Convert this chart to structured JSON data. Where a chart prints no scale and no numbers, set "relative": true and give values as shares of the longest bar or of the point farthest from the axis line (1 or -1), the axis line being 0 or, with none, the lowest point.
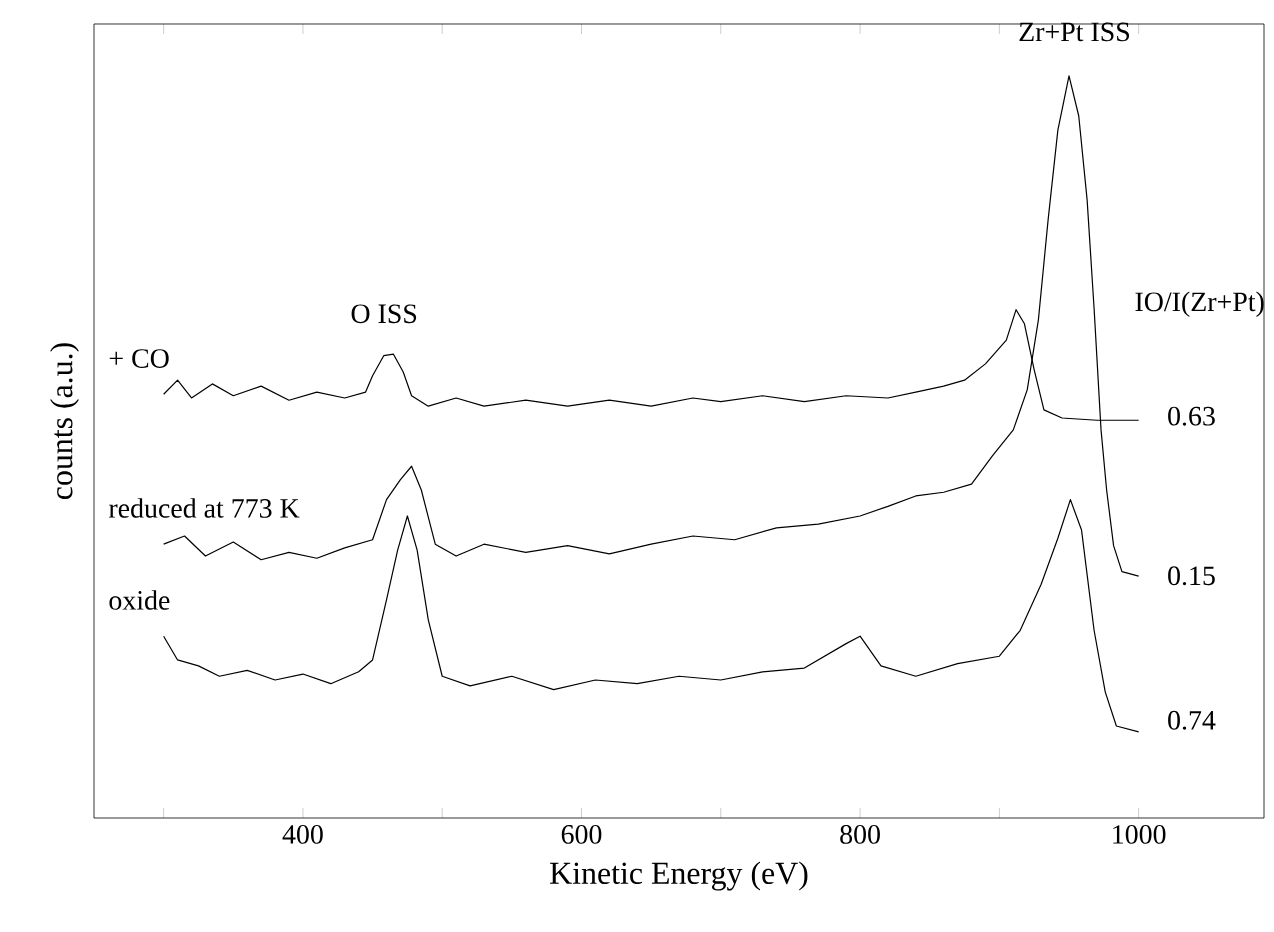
{
  "chart_data": {
    "type": "line",
    "relative": true,
    "xlabel": "Kinetic Energy (eV)",
    "ylabel": "counts (a.u.)",
    "xlim": [
      250,
      1090
    ],
    "xticks": [
      {
        "value": 300,
        "label": null
      },
      400,
      {
        "value": 500,
        "label": null
      },
      600,
      {
        "value": 700,
        "label": null
      },
      800,
      {
        "value": 900,
        "label": null
      },
      1000
    ],
    "series": [
      {
        "name": "+ CO",
        "color": "#000000",
        "x": [
          300,
          310,
          320,
          335,
          350,
          370,
          390,
          410,
          430,
          445,
          450,
          458,
          465,
          472,
          478,
          490,
          510,
          530,
          560,
          590,
          620,
          650,
          680,
          700,
          730,
          760,
          790,
          820,
          840,
          860,
          875,
          890,
          905,
          912,
          918,
          925,
          932,
          945,
          970,
          1000
        ],
        "values": [
          0.571,
          0.59,
          0.566,
          0.585,
          0.569,
          0.582,
          0.563,
          0.574,
          0.566,
          0.574,
          0.596,
          0.623,
          0.625,
          0.601,
          0.569,
          0.555,
          0.566,
          0.555,
          0.563,
          0.555,
          0.563,
          0.555,
          0.566,
          0.561,
          0.569,
          0.561,
          0.569,
          0.566,
          0.574,
          0.582,
          0.59,
          0.612,
          0.644,
          0.685,
          0.666,
          0.604,
          0.55,
          0.539,
          0.536,
          0.536
        ]
      },
      {
        "name": "reduced at 773 K",
        "color": "#000000",
        "x": [
          300,
          315,
          330,
          350,
          370,
          390,
          410,
          430,
          450,
          460,
          470,
          478,
          485,
          495,
          510,
          530,
          560,
          590,
          620,
          650,
          680,
          710,
          740,
          770,
          800,
          820,
          840,
          860,
          880,
          895,
          910,
          920,
          928,
          935,
          942,
          950,
          957,
          963,
          968,
          973,
          977,
          982,
          988,
          1000
        ],
        "values": [
          0.369,
          0.38,
          0.353,
          0.372,
          0.348,
          0.358,
          0.35,
          0.364,
          0.375,
          0.429,
          0.456,
          0.474,
          0.442,
          0.369,
          0.353,
          0.369,
          0.358,
          0.367,
          0.356,
          0.369,
          0.38,
          0.375,
          0.391,
          0.396,
          0.407,
          0.42,
          0.434,
          0.439,
          0.45,
          0.488,
          0.523,
          0.577,
          0.671,
          0.806,
          0.927,
          1,
          0.946,
          0.833,
          0.687,
          0.523,
          0.442,
          0.367,
          0.332,
          0.326
        ]
      },
      {
        "name": "oxide",
        "color": "#000000",
        "x": [
          300,
          310,
          325,
          340,
          360,
          380,
          400,
          420,
          440,
          450,
          460,
          468,
          475,
          482,
          490,
          500,
          520,
          550,
          580,
          610,
          640,
          670,
          700,
          730,
          760,
          790,
          800,
          815,
          840,
          870,
          900,
          915,
          930,
          942,
          951,
          959,
          968,
          976,
          984,
          1000
        ],
        "values": [
          0.245,
          0.213,
          0.205,
          0.191,
          0.199,
          0.186,
          0.194,
          0.181,
          0.197,
          0.213,
          0.294,
          0.361,
          0.407,
          0.361,
          0.267,
          0.191,
          0.178,
          0.191,
          0.173,
          0.186,
          0.181,
          0.191,
          0.186,
          0.197,
          0.202,
          0.235,
          0.245,
          0.205,
          0.191,
          0.208,
          0.218,
          0.253,
          0.315,
          0.377,
          0.429,
          0.388,
          0.253,
          0.17,
          0.124,
          0.116
        ]
      }
    ],
    "annotations": [
      "O ISS",
      "Zr+Pt ISS",
      "IO/I(Zr+Pt)",
      "0.63",
      "0.15",
      "0.74"
    ]
  }
}
